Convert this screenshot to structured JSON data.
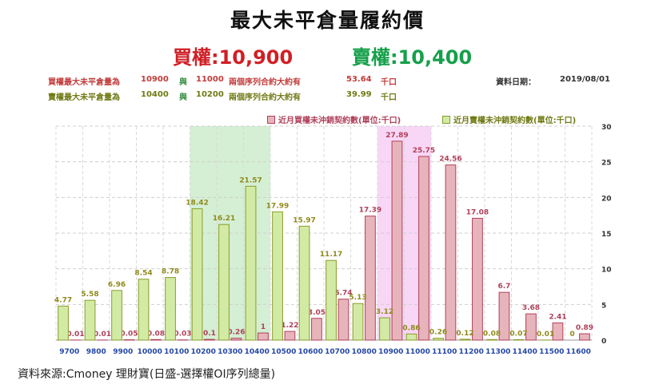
{
  "header": {
    "title": "最大未平倉量履約價",
    "call_label": "買權:10,900",
    "put_label": "賣權:10,400"
  },
  "info": {
    "call_row": {
      "prefix": "買權最大未平倉量為",
      "strike1": "10900",
      "and": "與",
      "strike2": "11000",
      "phrase": "兩個序列合約大約有",
      "amount": "53.64",
      "unit": "千口",
      "date_label": "資料日期：",
      "date": "2019/08/01"
    },
    "put_row": {
      "prefix": "賣權最大未平倉量為",
      "strike1": "10400",
      "and": "與",
      "strike2": "10200",
      "phrase": "兩個序列合約大約有",
      "amount": "39.99",
      "unit": "千口"
    }
  },
  "source": "資料來源:Cmoney 理財寶(日盛-選擇權OI序列總量)",
  "chart_data": {
    "type": "bar",
    "categories": [
      "9700",
      "9800",
      "9900",
      "10000",
      "10100",
      "10200",
      "10300",
      "10400",
      "10500",
      "10600",
      "10700",
      "10800",
      "10900",
      "11000",
      "11100",
      "11200",
      "11300",
      "11400",
      "11500",
      "11600"
    ],
    "series": [
      {
        "name": "近月買權未沖銷契約數(單位:千口)",
        "color": "#e8b4bc",
        "stroke": "#b0405a",
        "label_color": "#b0405a",
        "values": [
          0.01,
          0.01,
          0.05,
          0.08,
          0.03,
          0.1,
          0.26,
          1,
          1.22,
          3.05,
          5.74,
          17.39,
          27.89,
          25.75,
          24.56,
          17.08,
          6.7,
          3.68,
          2.41,
          0.89
        ]
      },
      {
        "name": "近月賣權未沖銷契約數(單位:千口)",
        "color": "#d2eba4",
        "stroke": "#8b9a2a",
        "label_color": "#8f8a1c",
        "values": [
          4.77,
          5.58,
          6.96,
          8.54,
          8.78,
          18.42,
          16.21,
          21.57,
          17.99,
          15.97,
          11.17,
          5.13,
          3.12,
          0.86,
          0.26,
          0.12,
          0.08,
          0.07,
          0.01,
          0
        ]
      }
    ],
    "y_right_axis": true,
    "ylim": [
      0,
      30
    ],
    "yticks": [
      0,
      5,
      10,
      15,
      20,
      25,
      30
    ],
    "highlight_put_range": [
      "10200",
      "10400"
    ],
    "highlight_call_range": [
      "10900",
      "11000"
    ],
    "highlight_put_color": "#cdeccb",
    "highlight_call_color": "#f7cff5",
    "grid": true
  }
}
